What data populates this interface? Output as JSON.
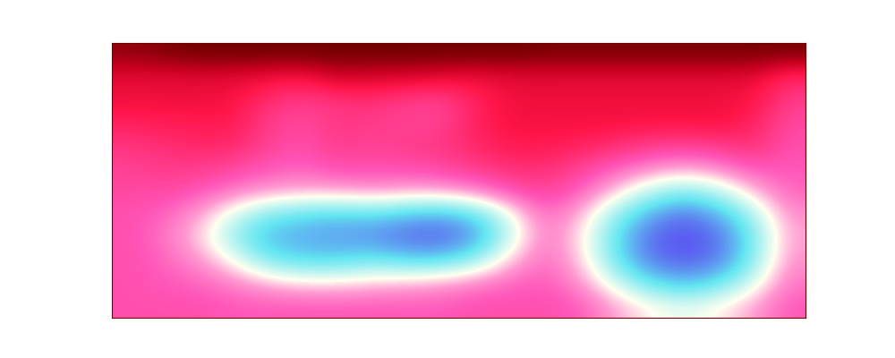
{
  "chart_data": {
    "type": "heatmap",
    "tick_labels": false,
    "cells": [
      [
        0.93,
        0.95,
        0.97,
        0.97,
        0.97,
        0.97,
        0.97,
        0.97,
        0.97,
        0.97,
        0.97,
        0.97,
        0.96,
        0.96,
        0.96,
        0.96,
        0.96,
        0.96,
        0.96,
        0.96
      ],
      [
        0.82,
        0.82,
        0.82,
        0.82,
        0.8,
        0.78,
        0.86,
        0.84,
        0.84,
        0.82,
        0.8,
        0.82,
        0.82,
        0.82,
        0.82,
        0.82,
        0.82,
        0.82,
        0.82,
        0.72
      ],
      [
        0.8,
        0.8,
        0.8,
        0.79,
        0.7,
        0.66,
        0.68,
        0.7,
        0.66,
        0.64,
        0.74,
        0.8,
        0.8,
        0.8,
        0.8,
        0.8,
        0.8,
        0.8,
        0.78,
        0.66
      ],
      [
        0.74,
        0.75,
        0.76,
        0.76,
        0.66,
        0.62,
        0.68,
        0.66,
        0.64,
        0.64,
        0.74,
        0.79,
        0.79,
        0.79,
        0.79,
        0.78,
        0.78,
        0.79,
        0.74,
        0.62
      ],
      [
        0.68,
        0.7,
        0.72,
        0.72,
        0.64,
        0.6,
        0.66,
        0.64,
        0.66,
        0.68,
        0.72,
        0.76,
        0.76,
        0.74,
        0.7,
        0.66,
        0.64,
        0.66,
        0.7,
        0.6
      ],
      [
        0.64,
        0.66,
        0.66,
        0.62,
        0.58,
        0.56,
        0.6,
        0.6,
        0.6,
        0.62,
        0.66,
        0.7,
        0.7,
        0.64,
        0.56,
        0.5,
        0.46,
        0.5,
        0.58,
        0.58
      ],
      [
        0.62,
        0.62,
        0.58,
        0.52,
        0.48,
        0.46,
        0.46,
        0.48,
        0.46,
        0.46,
        0.5,
        0.58,
        0.64,
        0.56,
        0.44,
        0.3,
        0.24,
        0.3,
        0.44,
        0.56
      ],
      [
        0.6,
        0.56,
        0.48,
        0.34,
        0.22,
        0.18,
        0.16,
        0.18,
        0.14,
        0.12,
        0.18,
        0.36,
        0.56,
        0.46,
        0.26,
        0.12,
        0.04,
        0.12,
        0.28,
        0.5
      ],
      [
        0.6,
        0.54,
        0.44,
        0.26,
        0.14,
        0.12,
        0.1,
        0.08,
        0.04,
        0.02,
        0.1,
        0.32,
        0.54,
        0.42,
        0.2,
        0.04,
        0.0,
        0.04,
        0.22,
        0.48
      ],
      [
        0.6,
        0.56,
        0.5,
        0.38,
        0.22,
        0.18,
        0.18,
        0.22,
        0.18,
        0.18,
        0.26,
        0.44,
        0.56,
        0.44,
        0.22,
        0.06,
        0.02,
        0.06,
        0.24,
        0.5
      ],
      [
        0.6,
        0.58,
        0.56,
        0.52,
        0.46,
        0.42,
        0.42,
        0.44,
        0.46,
        0.48,
        0.52,
        0.56,
        0.58,
        0.5,
        0.34,
        0.2,
        0.14,
        0.2,
        0.34,
        0.54
      ],
      [
        0.6,
        0.6,
        0.6,
        0.58,
        0.58,
        0.58,
        0.58,
        0.58,
        0.58,
        0.58,
        0.6,
        0.6,
        0.6,
        0.58,
        0.48,
        0.4,
        0.36,
        0.4,
        0.48,
        0.58
      ]
    ]
  }
}
